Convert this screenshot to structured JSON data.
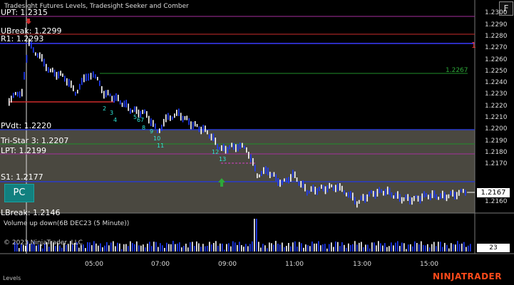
{
  "header": {
    "title": "Tradesight Futures Levels, Tradesight Seeker and Comber"
  },
  "buttons": {
    "f_label": "F",
    "pc_label": "PC"
  },
  "price_axis": {
    "ticks": [
      "1.2300",
      "1.2290",
      "1.2280",
      "1.2270",
      "1.2260",
      "1.2250",
      "1.2240",
      "1.2230",
      "1.2220",
      "1.2210",
      "1.2200",
      "1.2190",
      "1.2180",
      "1.2170",
      "1.2160"
    ],
    "last_price": "1.2167"
  },
  "levels": {
    "upt": "UPT: 1.2315",
    "ubreak": "UBreak: 1.2299",
    "r1": "R1: 1.2293",
    "right_1": "1",
    "green_level": "1.2267",
    "pivot": "PVdt: 1.2220",
    "tristar": "Tri-Star 3: 1.2207",
    "lpt": "LPT: 1.2199",
    "s1": "S1: 1.2177",
    "lbreak": "LBreak: 1.2146"
  },
  "signals": [
    "2",
    "3",
    "4",
    "5",
    "6",
    "7",
    "8",
    "9",
    "10",
    "11",
    "12",
    "13"
  ],
  "volume_panel": {
    "label": "Volume up down(6B DEC23 (5 Minute))",
    "copyright": "© 2023 NinjaTrader, LLC",
    "last_volume": "23"
  },
  "time_axis": {
    "labels": [
      "05:00",
      "07:00",
      "09:00",
      "11:00",
      "13:00",
      "15:00"
    ]
  },
  "footer": {
    "tab_label": "Levels"
  },
  "logo": {
    "text": "NINJATRADER"
  },
  "colors": {
    "background": "#000000",
    "range_box": "#4a4840",
    "up_bar": "#ffffff",
    "down_bar": "#1f3cff",
    "resistance": "#cc2b2b",
    "magenta": "#a6309e",
    "green": "#1f8f2a",
    "navy": "#2a3ccc",
    "brand": "#ff4a1a"
  }
}
